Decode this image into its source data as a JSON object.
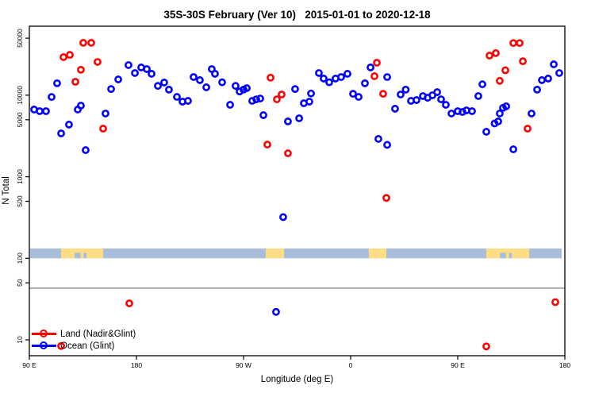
{
  "title": "35S-30S February (Ver 10)   2015-01-01 to 2020-12-18",
  "axes": {
    "x": {
      "label": "Longitude (deg E)",
      "range_deg": [
        90,
        540
      ],
      "ticks": [
        {
          "lon": 90,
          "label": "90 E"
        },
        {
          "lon": 180,
          "label": "180"
        },
        {
          "lon": 270,
          "label": "90 W"
        },
        {
          "lon": 360,
          "label": "0"
        },
        {
          "lon": 450,
          "label": "90 E"
        },
        {
          "lon": 540,
          "label": "180"
        }
      ]
    },
    "y": {
      "label": "N Total",
      "scale": "log10",
      "range": [
        6.5,
        70000
      ],
      "ticks": [
        {
          "v": 10,
          "label": "10"
        },
        {
          "v": 50,
          "label": "50"
        },
        {
          "v": 100,
          "label": "100"
        },
        {
          "v": 500,
          "label": "500"
        },
        {
          "v": 1000,
          "label": "1000"
        },
        {
          "v": 5000,
          "label": "5000"
        },
        {
          "v": 10000,
          "label": "10000"
        },
        {
          "v": 50000,
          "label": "50000"
        }
      ]
    }
  },
  "legend": {
    "items": [
      {
        "label": "Land (Nadir&Glint)",
        "color": "#ff0000"
      },
      {
        "label": "Ocean (Glint)",
        "color": "#0000ff"
      }
    ]
  },
  "colors": {
    "land_series": "#ff0000",
    "ocean_series": "#0000ff",
    "strip_ocean": "#a9bedb",
    "strip_land": "#ffdd87",
    "reference_line": "#707070",
    "axis": "#000000"
  },
  "chart_data": {
    "type": "scatter",
    "title": "35S-30S February (Ver 10)   2015-01-01 to 2020-12-18",
    "xlabel": "Longitude (deg E)",
    "ylabel": "N Total",
    "x_unit": "longitude, axis runs 90E > 180 > 90W > 0 > 90E > 180 (90 to 540 deg continuous)",
    "y_scale": "log10",
    "ylim": [
      6.5,
      70000
    ],
    "reference_line_n": 43,
    "map_strip": {
      "n_top": 132,
      "n_bottom": 100,
      "segments": [
        {
          "from": 90.7,
          "to": 116.7,
          "surface": "ocean"
        },
        {
          "from": 116.7,
          "to": 152,
          "surface": "land"
        },
        {
          "from": 152,
          "to": 288.7,
          "surface": "ocean"
        },
        {
          "from": 288.7,
          "to": 304,
          "surface": "land"
        },
        {
          "from": 304,
          "to": 375.3,
          "surface": "ocean"
        },
        {
          "from": 375.3,
          "to": 390,
          "surface": "land"
        },
        {
          "from": 390,
          "to": 474,
          "surface": "ocean"
        },
        {
          "from": 474,
          "to": 510,
          "surface": "land"
        },
        {
          "from": 510,
          "to": 537.3,
          "surface": "ocean"
        }
      ],
      "notches": [
        {
          "from": 128,
          "to": 133
        },
        {
          "from": 135.5,
          "to": 138
        },
        {
          "from": 485.5,
          "to": 490.5
        },
        {
          "from": 493,
          "to": 495.5
        }
      ]
    },
    "series": [
      {
        "name": "Land (Nadir&Glint)",
        "color": "#ff0000",
        "points": [
          [
            116.7,
            8.4
          ],
          [
            118.7,
            29300
          ],
          [
            124,
            31200
          ],
          [
            128.7,
            14600
          ],
          [
            133.3,
            20500
          ],
          [
            135.3,
            43900
          ],
          [
            142,
            43900
          ],
          [
            147.3,
            25600
          ],
          [
            152,
            3890
          ],
          [
            174,
            28
          ],
          [
            290,
            2480
          ],
          [
            292.7,
            16400
          ],
          [
            298,
            8900
          ],
          [
            302,
            10200
          ],
          [
            307.3,
            1940
          ],
          [
            380,
            17100
          ],
          [
            382,
            25000
          ],
          [
            387.3,
            10400
          ],
          [
            390,
            550
          ],
          [
            474,
            8.3
          ],
          [
            476.7,
            30600
          ],
          [
            482,
            32800
          ],
          [
            485.3,
            15000
          ],
          [
            490,
            20200
          ],
          [
            496.7,
            43600
          ],
          [
            502,
            43600
          ],
          [
            504.7,
            26100
          ],
          [
            508.7,
            3890
          ],
          [
            532,
            29
          ]
        ]
      },
      {
        "name": "Ocean (Glint)",
        "color": "#0000ff",
        "points": [
          [
            94,
            6670
          ],
          [
            98.7,
            6370
          ],
          [
            104,
            6370
          ],
          [
            108.7,
            9500
          ],
          [
            113.3,
            14000
          ],
          [
            116.7,
            3400
          ],
          [
            123.3,
            4360
          ],
          [
            130.7,
            6670
          ],
          [
            133.3,
            7450
          ],
          [
            137.3,
            2120
          ],
          [
            154,
            5960
          ],
          [
            158.7,
            11900
          ],
          [
            164.7,
            15600
          ],
          [
            173.3,
            23400
          ],
          [
            178.7,
            18700
          ],
          [
            184,
            21900
          ],
          [
            188.7,
            20900
          ],
          [
            192.7,
            18300
          ],
          [
            198,
            13000
          ],
          [
            203.3,
            14300
          ],
          [
            207.3,
            11700
          ],
          [
            214,
            9530
          ],
          [
            218.7,
            8340
          ],
          [
            223.3,
            8520
          ],
          [
            228,
            16700
          ],
          [
            233.3,
            15300
          ],
          [
            238.7,
            12500
          ],
          [
            243.3,
            20900
          ],
          [
            246,
            18300
          ],
          [
            252,
            14400
          ],
          [
            258.7,
            7620
          ],
          [
            263.3,
            13000
          ],
          [
            266.7,
            11100
          ],
          [
            270,
            11700
          ],
          [
            272.7,
            12200
          ],
          [
            277.3,
            8520
          ],
          [
            280.7,
            8900
          ],
          [
            284,
            9100
          ],
          [
            286.7,
            5690
          ],
          [
            297.3,
            22
          ],
          [
            303.3,
            320
          ],
          [
            307.3,
            4770
          ],
          [
            313.3,
            11900
          ],
          [
            316.7,
            5210
          ],
          [
            320.7,
            7970
          ],
          [
            325.3,
            8340
          ],
          [
            326.7,
            10500
          ],
          [
            333.3,
            18700
          ],
          [
            337.3,
            16000
          ],
          [
            342,
            14400
          ],
          [
            347.3,
            16000
          ],
          [
            352,
            16700
          ],
          [
            357.3,
            18300
          ],
          [
            362,
            10400
          ],
          [
            366.7,
            9530
          ],
          [
            372,
            14000
          ],
          [
            376.7,
            21900
          ],
          [
            383.3,
            2910
          ],
          [
            390.7,
            2460
          ],
          [
            390.7,
            16700
          ],
          [
            397.3,
            6820
          ],
          [
            402,
            10200
          ],
          [
            406.3,
            11700
          ],
          [
            410.7,
            8520
          ],
          [
            415.3,
            8710
          ],
          [
            420.7,
            9760
          ],
          [
            424.7,
            9310
          ],
          [
            428.7,
            9980
          ],
          [
            432.7,
            10900
          ],
          [
            436,
            8900
          ],
          [
            440,
            7620
          ],
          [
            444.7,
            5960
          ],
          [
            450,
            6370
          ],
          [
            454,
            6230
          ],
          [
            457.3,
            6520
          ],
          [
            462,
            6370
          ],
          [
            467.3,
            9760
          ],
          [
            470.7,
            13600
          ],
          [
            474,
            3560
          ],
          [
            481,
            4500
          ],
          [
            484,
            4770
          ],
          [
            485.3,
            5960
          ],
          [
            488,
            6990
          ],
          [
            490.7,
            7310
          ],
          [
            496.7,
            2170
          ],
          [
            512,
            5960
          ],
          [
            516.7,
            11700
          ],
          [
            520.7,
            15300
          ],
          [
            526,
            16000
          ],
          [
            530.7,
            23900
          ],
          [
            535.3,
            18700
          ]
        ]
      }
    ]
  }
}
